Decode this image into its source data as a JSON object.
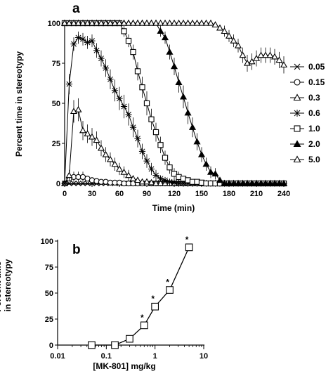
{
  "chart_data": [
    {
      "panel_label": "a",
      "type": "line",
      "xlabel": "Time (min)",
      "ylabel": "Percent time in stereotypy",
      "xlim": [
        0,
        240
      ],
      "ylim": [
        0,
        100
      ],
      "x_ticks": [
        "0",
        "30",
        "60",
        "90",
        "120",
        "150",
        "180",
        "210",
        "240"
      ],
      "y_ticks": [
        "0",
        "25",
        "50",
        "75",
        "100"
      ],
      "legend_position": "right",
      "error_bars": true,
      "x": [
        0,
        5,
        10,
        15,
        20,
        25,
        30,
        35,
        40,
        45,
        50,
        55,
        60,
        65,
        70,
        75,
        80,
        85,
        90,
        95,
        100,
        105,
        110,
        115,
        120,
        125,
        130,
        135,
        140,
        145,
        150,
        155,
        160,
        165,
        170,
        175,
        180,
        185,
        190,
        195,
        200,
        205,
        210,
        215,
        220,
        225,
        230,
        235,
        240
      ],
      "series": [
        {
          "name": "0.05",
          "marker": "x",
          "values": [
            0,
            0,
            0,
            0,
            0,
            0,
            0,
            0,
            0,
            0,
            0,
            0,
            0,
            0,
            0,
            0,
            0,
            0,
            0,
            0,
            0,
            0,
            0,
            0,
            0,
            0,
            0,
            0,
            0,
            0,
            0,
            0,
            0,
            0,
            0,
            0,
            0,
            0,
            0,
            0,
            0,
            0,
            0,
            0,
            0,
            0,
            0,
            0,
            0
          ]
        },
        {
          "name": "0.15",
          "marker": "circle",
          "values": [
            0,
            3,
            4,
            4,
            4,
            3,
            2,
            1.5,
            1,
            1,
            0.5,
            0.5,
            0.5,
            0,
            0,
            0,
            0,
            0,
            0,
            0,
            0,
            0,
            0,
            0,
            0,
            0,
            0,
            0,
            0,
            0,
            0,
            0,
            0,
            0,
            0,
            0,
            0,
            0,
            0,
            0,
            0,
            0,
            0,
            0,
            0,
            0,
            0,
            0,
            0
          ]
        },
        {
          "name": "0.3",
          "marker": "triangle-open",
          "values": [
            0,
            5,
            45,
            46,
            33,
            31,
            29,
            27,
            22,
            18,
            15,
            12,
            9,
            7,
            5,
            3,
            2,
            1,
            1,
            0.5,
            0,
            0,
            0,
            0,
            0,
            0,
            0,
            0,
            0,
            0,
            0,
            0,
            0,
            0,
            0,
            0,
            0,
            0,
            0,
            0,
            0,
            0,
            0,
            0,
            0,
            0,
            0,
            0,
            0
          ]
        },
        {
          "name": "0.6",
          "marker": "star",
          "values": [
            0,
            62,
            87,
            91,
            90,
            88,
            89,
            83,
            78,
            72,
            65,
            58,
            53,
            48,
            43,
            35,
            28,
            20,
            14,
            9,
            5,
            3,
            2,
            1,
            0.5,
            0,
            0,
            0,
            0,
            0,
            0,
            0,
            0,
            0,
            0,
            0,
            0,
            0,
            0,
            0,
            0,
            0,
            0,
            0,
            0,
            0,
            0,
            0,
            0
          ]
        },
        {
          "name": "1.0",
          "marker": "square",
          "values": [
            100,
            100,
            100,
            100,
            100,
            100,
            100,
            100,
            100,
            100,
            100,
            100,
            100,
            95,
            89,
            82,
            70,
            60,
            50,
            40,
            32,
            24,
            16,
            10,
            6,
            4,
            3,
            2,
            1,
            1,
            0.5,
            0,
            0,
            0,
            0,
            0,
            0,
            0,
            0,
            0,
            0,
            0,
            0,
            0,
            0,
            0,
            0,
            0,
            0
          ]
        },
        {
          "name": "2.0",
          "marker": "triangle-filled",
          "values": [
            100,
            100,
            100,
            100,
            100,
            100,
            100,
            100,
            100,
            100,
            100,
            100,
            100,
            100,
            100,
            100,
            100,
            100,
            100,
            100,
            100,
            95,
            91,
            82,
            73,
            63,
            54,
            44,
            35,
            26,
            18,
            12,
            7,
            6,
            2,
            0,
            0,
            0,
            0,
            0,
            0,
            0,
            0,
            0,
            0,
            0,
            0,
            0,
            0
          ]
        },
        {
          "name": "5.0",
          "marker": "triangle-open",
          "values": [
            100,
            100,
            100,
            100,
            100,
            100,
            100,
            100,
            100,
            100,
            100,
            100,
            100,
            100,
            100,
            100,
            100,
            100,
            100,
            100,
            100,
            100,
            100,
            100,
            100,
            100,
            100,
            100,
            100,
            100,
            100,
            100,
            100,
            99,
            97,
            95,
            92,
            89,
            86,
            80,
            75,
            76,
            78,
            80,
            80,
            80,
            79,
            77,
            74
          ]
        }
      ]
    },
    {
      "panel_label": "b",
      "type": "line",
      "xlabel": "[MK-801] mg/kg",
      "ylabel": "Percent time in stereotypy",
      "x_scale": "log",
      "xlim": [
        0.01,
        10
      ],
      "ylim": [
        0,
        100
      ],
      "x_ticks": [
        "0.01",
        "0.1",
        "1",
        "10"
      ],
      "y_ticks": [
        "0",
        "25",
        "50",
        "75",
        "100"
      ],
      "x": [
        0.05,
        0.15,
        0.3,
        0.6,
        1.0,
        2.0,
        5.0
      ],
      "values": [
        0,
        0,
        6,
        19,
        37,
        53,
        94
      ],
      "significant": [
        false,
        false,
        false,
        true,
        true,
        true,
        true
      ],
      "significance_label": "*"
    }
  ]
}
